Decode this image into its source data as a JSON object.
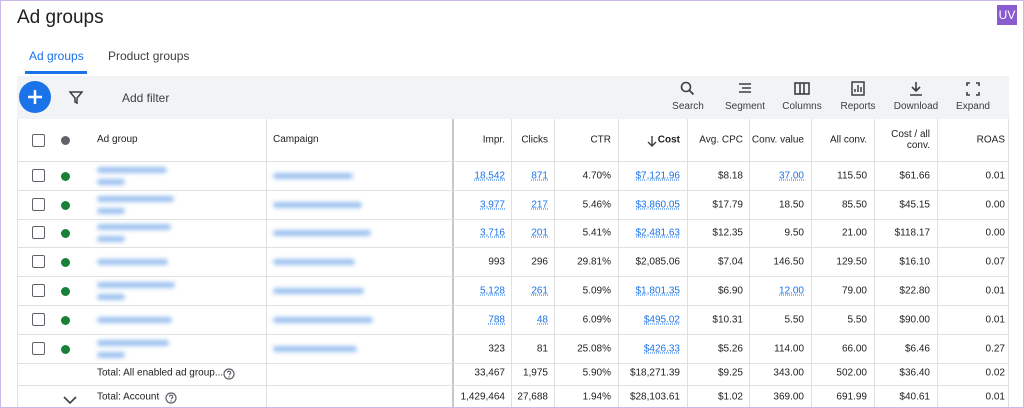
{
  "header": {
    "title": "Ad groups",
    "badge": "UV"
  },
  "tabs": [
    "Ad groups",
    "Product groups"
  ],
  "toolbar": {
    "filter": "Add filter",
    "tools": [
      "Search",
      "Segment",
      "Columns",
      "Reports",
      "Download",
      "Expand"
    ]
  },
  "table": {
    "columns": [
      "Ad group",
      "Campaign",
      "Impr.",
      "Clicks",
      "CTR",
      "Cost",
      "Avg. CPC",
      "Conv. value",
      "All conv.",
      "Cost / all conv.",
      "ROAS"
    ],
    "rows": [
      [
        "18,542",
        "871",
        "4.70%",
        "$7,121.96",
        "$8.18",
        "37.00",
        "115.50",
        "$61.66",
        "0.01"
      ],
      [
        "3,977",
        "217",
        "5.46%",
        "$3,860.05",
        "$17.79",
        "18.50",
        "85.50",
        "$45.15",
        "0.00"
      ],
      [
        "3,716",
        "201",
        "5.41%",
        "$2,481.63",
        "$12.35",
        "9.50",
        "21.00",
        "$118.17",
        "0.00"
      ],
      [
        "993",
        "296",
        "29.81%",
        "$2,085.06",
        "$7.04",
        "146.50",
        "129.50",
        "$16.10",
        "0.07"
      ],
      [
        "5,128",
        "261",
        "5.09%",
        "$1,801.35",
        "$6.90",
        "12.00",
        "79.00",
        "$22.80",
        "0.01"
      ],
      [
        "788",
        "48",
        "6.09%",
        "$495.02",
        "$10.31",
        "5.50",
        "5.50",
        "$90.00",
        "0.01"
      ],
      [
        "323",
        "81",
        "25.08%",
        "$426.33",
        "$5.26",
        "114.00",
        "66.00",
        "$6.46",
        "0.27"
      ]
    ],
    "totals": [
      {
        "label": "Total: All enabled ad group...",
        "cells": [
          "33,467",
          "1,975",
          "5.90%",
          "$18,271.39",
          "$9.25",
          "343.00",
          "502.00",
          "$36.40",
          "0.02"
        ]
      },
      {
        "label": "Total: Account",
        "cells": [
          "1,429,464",
          "27,688",
          "1.94%",
          "$28,103.61",
          "$1.02",
          "369.00",
          "691.99",
          "$40.61",
          "0.01"
        ]
      }
    ]
  }
}
